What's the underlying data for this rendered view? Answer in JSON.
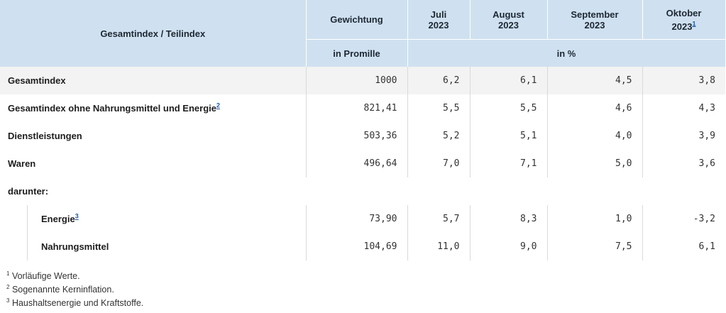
{
  "header": {
    "col_label": "Gesamtindex / Teilindex",
    "col_weight": "Gewichtung",
    "months": [
      {
        "name": "Juli",
        "year": "2023"
      },
      {
        "name": "August",
        "year": "2023"
      },
      {
        "name": "September",
        "year": "2023"
      },
      {
        "name": "Oktober",
        "year": "2023",
        "fn": "1"
      }
    ],
    "unit_weight": "in Promille",
    "unit_rate": "in %"
  },
  "rows": [
    {
      "label": "Gesamtindex",
      "weight": "1000",
      "values": [
        "6,2",
        "6,1",
        "4,5",
        "3,8"
      ]
    },
    {
      "label": "Gesamtindex ohne Nahrungsmittel und Energie",
      "fn": "2",
      "weight": "821,41",
      "values": [
        "5,5",
        "5,5",
        "4,6",
        "4,3"
      ]
    },
    {
      "label": "Dienstleistungen",
      "weight": "503,36",
      "values": [
        "5,2",
        "5,1",
        "4,0",
        "3,9"
      ]
    },
    {
      "label": "Waren",
      "weight": "496,64",
      "values": [
        "7,0",
        "7,1",
        "5,0",
        "3,6"
      ]
    }
  ],
  "darunter": "darunter:",
  "subrows": [
    {
      "label": "Energie",
      "fn": "3",
      "weight": "73,90",
      "values": [
        "5,7",
        "8,3",
        "1,0",
        "-3,2"
      ]
    },
    {
      "label": "Nahrungsmittel",
      "weight": "104,69",
      "values": [
        "11,0",
        "9,0",
        "7,5",
        "6,1"
      ]
    }
  ],
  "footnotes": [
    {
      "num": "1",
      "text": "Vorläufige Werte."
    },
    {
      "num": "2",
      "text": "Sogenannte Kerninflation."
    },
    {
      "num": "3",
      "text": "Haushaltsenergie und Kraftstoffe."
    }
  ]
}
